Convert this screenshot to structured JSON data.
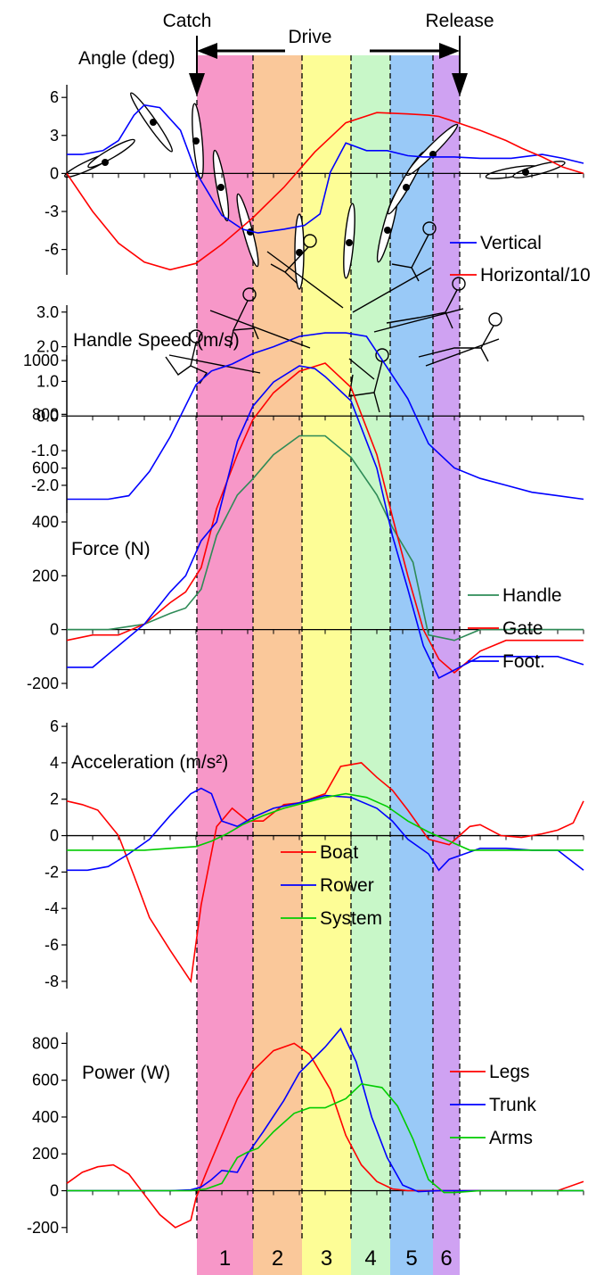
{
  "header": {
    "catch_label": "Catch",
    "drive_label": "Drive",
    "release_label": "Release"
  },
  "phase_colors": [
    "#f797c8",
    "#fac89a",
    "#fdfd96",
    "#c8f7c8",
    "#99c9f7",
    "#cfa2f2"
  ],
  "phase_numbers": [
    "1",
    "2",
    "3",
    "4",
    "5",
    "6"
  ],
  "chart_data": [
    {
      "type": "line",
      "title": "Angle (deg)",
      "ylim": [
        -8,
        7
      ],
      "ticks": [
        6,
        3,
        0,
        -3,
        -6
      ],
      "tick_labels": [
        "6",
        "3",
        "0",
        "-3",
        "-6"
      ],
      "legend": [
        "Vertical",
        "Horizontal/10"
      ],
      "series": [
        {
          "name": "Vertical",
          "color": "#0000ff",
          "x": [
            0,
            3,
            7,
            10,
            13,
            15,
            18,
            22,
            25,
            30,
            34,
            37,
            42,
            46,
            49,
            51,
            54,
            58,
            62,
            66,
            69,
            75,
            80,
            86,
            92,
            96,
            100
          ],
          "values": [
            1.5,
            1.5,
            1.8,
            2.6,
            4.6,
            5.4,
            5.2,
            3.4,
            0.1,
            -3.3,
            -4.4,
            -4.7,
            -4.4,
            -4.1,
            -3.2,
            0.1,
            2.4,
            1.8,
            1.8,
            1.4,
            1.3,
            1.3,
            1.2,
            1.2,
            1.5,
            1.2,
            0.8
          ]
        },
        {
          "name": "Horizontal/10",
          "color": "#ff0000",
          "x": [
            0,
            5,
            10,
            15,
            20,
            25,
            30,
            36,
            42,
            48,
            54,
            60,
            66,
            70,
            72,
            75,
            80,
            85,
            88,
            92,
            96,
            100
          ],
          "values": [
            0,
            -3,
            -5.5,
            -7,
            -7.6,
            -7.1,
            -5.6,
            -3.5,
            -1.1,
            1.7,
            4,
            4.8,
            4.7,
            4.6,
            4.5,
            4.1,
            3.4,
            2.6,
            2,
            1.3,
            0.5,
            0
          ]
        }
      ]
    },
    {
      "type": "line",
      "title": "Handle Speed (m/s)",
      "ylim": [
        -2.8,
        3.2
      ],
      "ticks": [
        3,
        2,
        1,
        0,
        -1,
        -2
      ],
      "tick_labels": [
        "3.0",
        "2.0",
        "1.0",
        "0.0",
        "-1.0",
        "-2.0"
      ],
      "series": [
        {
          "name": "",
          "color": "#0000ff",
          "x": [
            0,
            4,
            8,
            12,
            16,
            20,
            22,
            25,
            28,
            32,
            36,
            40,
            45,
            50,
            54,
            58,
            62,
            66,
            70,
            75,
            80,
            85,
            90,
            95,
            100
          ],
          "values": [
            -2.4,
            -2.4,
            -2.4,
            -2.3,
            -1.6,
            -0.6,
            0.0,
            0.9,
            1.3,
            1.5,
            1.8,
            2.0,
            2.3,
            2.4,
            2.4,
            2.3,
            1.4,
            0.5,
            -0.8,
            -1.5,
            -1.8,
            -2.0,
            -2.2,
            -2.3,
            -2.4
          ]
        }
      ]
    },
    {
      "type": "line",
      "title": "Force (N)",
      "ylim": [
        -220,
        1020
      ],
      "ticks": [
        1000,
        800,
        600,
        400,
        200,
        0,
        -200
      ],
      "tick_labels": [
        "1000",
        "800",
        "600",
        "400",
        "200",
        "0",
        "-200"
      ],
      "legend": [
        "Handle",
        "Gate",
        "Foot."
      ],
      "series": [
        {
          "name": "Handle",
          "color": "#2e8b57",
          "x": [
            0,
            8,
            15,
            20,
            23,
            26,
            29,
            33,
            36,
            40,
            45,
            50,
            55,
            60,
            63,
            67,
            70,
            75,
            80,
            85,
            90,
            95,
            100
          ],
          "values": [
            0,
            0,
            20,
            60,
            80,
            150,
            350,
            500,
            560,
            650,
            720,
            720,
            640,
            500,
            380,
            250,
            -20,
            -40,
            0,
            0,
            0,
            0,
            0
          ]
        },
        {
          "name": "Gate",
          "color": "#ff0000",
          "x": [
            0,
            5,
            10,
            15,
            20,
            23,
            26,
            29,
            33,
            36,
            40,
            45,
            50,
            55,
            60,
            63,
            66,
            69,
            72,
            75,
            80,
            85,
            90,
            95,
            100
          ],
          "values": [
            -40,
            -20,
            -20,
            20,
            100,
            140,
            230,
            450,
            650,
            780,
            880,
            960,
            990,
            900,
            650,
            420,
            200,
            0,
            -110,
            -160,
            -80,
            -40,
            -40,
            -40,
            -40
          ]
        },
        {
          "name": "Foot.",
          "color": "#0000ff",
          "x": [
            0,
            5,
            10,
            15,
            20,
            23,
            26,
            29,
            33,
            36,
            40,
            45,
            48,
            50,
            55,
            60,
            63,
            66,
            69,
            72,
            75,
            80,
            85,
            90,
            95,
            100
          ],
          "values": [
            -140,
            -140,
            -60,
            20,
            140,
            200,
            330,
            400,
            700,
            830,
            920,
            980,
            970,
            940,
            850,
            600,
            350,
            150,
            -60,
            -180,
            -150,
            -100,
            -100,
            -100,
            -100,
            -130
          ]
        }
      ]
    },
    {
      "type": "line",
      "title": "Acceleration (m/s²)",
      "ylim": [
        -8.4,
        6.2
      ],
      "ticks": [
        6,
        4,
        2,
        0,
        -2,
        -4,
        -6,
        -8
      ],
      "tick_labels": [
        "6",
        "4",
        "2",
        "0",
        "-2",
        "-4",
        "-6",
        "-8"
      ],
      "legend": [
        "Boat",
        "Rower",
        "System"
      ],
      "series": [
        {
          "name": "Boat",
          "color": "#ff0000",
          "x": [
            0,
            3,
            6,
            10,
            13,
            16,
            20,
            24,
            26,
            29,
            32,
            35,
            38,
            42,
            45,
            50,
            53,
            57,
            60,
            63,
            66,
            70,
            74,
            78,
            80,
            84,
            88,
            92,
            95,
            98,
            100
          ],
          "values": [
            1.9,
            1.7,
            1.4,
            0,
            -2.2,
            -4.5,
            -6.3,
            -8,
            -3.8,
            0.5,
            1.5,
            0.8,
            0.8,
            1.7,
            1.8,
            2.3,
            3.8,
            4.0,
            3.2,
            2.5,
            1.4,
            -0.2,
            -0.5,
            0.5,
            0.6,
            0,
            -0.1,
            0.1,
            0.3,
            0.7,
            1.9
          ]
        },
        {
          "name": "Rower",
          "color": "#0000ff",
          "x": [
            0,
            4,
            8,
            12,
            16,
            20,
            24,
            26,
            28,
            30,
            33,
            36,
            40,
            45,
            50,
            55,
            60,
            63,
            66,
            70,
            72,
            74,
            76,
            80,
            85,
            90,
            95,
            100
          ],
          "values": [
            -1.9,
            -1.9,
            -1.7,
            -1.0,
            -0.2,
            1.1,
            2.3,
            2.6,
            2.3,
            0.8,
            0.5,
            1.0,
            1.5,
            1.8,
            2.2,
            2.1,
            1.5,
            0.8,
            -0.2,
            -1.0,
            -1.9,
            -1.3,
            -1.1,
            -0.7,
            -0.7,
            -0.8,
            -0.8,
            -1.9
          ]
        },
        {
          "name": "System",
          "color": "#00cc00",
          "x": [
            0,
            5,
            10,
            15,
            20,
            25,
            28,
            31,
            34,
            38,
            42,
            46,
            50,
            54,
            58,
            62,
            66,
            70,
            74,
            78,
            82,
            86,
            90,
            95,
            100
          ],
          "values": [
            -0.8,
            -0.8,
            -0.8,
            -0.8,
            -0.7,
            -0.6,
            -0.3,
            0.1,
            0.6,
            1.1,
            1.5,
            1.8,
            2.1,
            2.3,
            2.1,
            1.6,
            0.8,
            0.2,
            -0.3,
            -0.8,
            -0.8,
            -0.8,
            -0.8,
            -0.8,
            -0.8
          ]
        }
      ]
    },
    {
      "type": "line",
      "title": "Power (W)",
      "ylim": [
        -230,
        860
      ],
      "ticks": [
        800,
        600,
        400,
        200,
        0,
        -200
      ],
      "tick_labels": [
        "800",
        "600",
        "400",
        "200",
        "0",
        "-200"
      ],
      "legend": [
        "Legs",
        "Trunk",
        "Arms"
      ],
      "series": [
        {
          "name": "Legs",
          "color": "#ff0000",
          "x": [
            0,
            3,
            6,
            9,
            12,
            15,
            18,
            21,
            24,
            25,
            27,
            30,
            33,
            36,
            40,
            44,
            47,
            51,
            54,
            57,
            60,
            63,
            66,
            70,
            75,
            80,
            85,
            90,
            95,
            100
          ],
          "values": [
            40,
            100,
            130,
            140,
            90,
            -20,
            -130,
            -200,
            -160,
            -40,
            100,
            300,
            500,
            650,
            760,
            800,
            740,
            550,
            300,
            140,
            50,
            10,
            0,
            0,
            0,
            0,
            0,
            0,
            0,
            50
          ]
        },
        {
          "name": "Trunk",
          "color": "#0000ff",
          "x": [
            0,
            5,
            10,
            15,
            20,
            24,
            26,
            28,
            30,
            33,
            35,
            38,
            42,
            45,
            50,
            53,
            56,
            59,
            62,
            65,
            68,
            72,
            76,
            80,
            85,
            90,
            95,
            100
          ],
          "values": [
            0,
            0,
            0,
            0,
            0,
            5,
            20,
            60,
            110,
            100,
            200,
            320,
            490,
            640,
            780,
            880,
            700,
            400,
            180,
            30,
            -5,
            0,
            0,
            0,
            0,
            0,
            0,
            0
          ]
        },
        {
          "name": "Arms",
          "color": "#00cc00",
          "x": [
            0,
            5,
            10,
            15,
            20,
            24,
            27,
            30,
            33,
            35,
            37,
            40,
            44,
            47,
            50,
            54,
            57,
            61,
            64,
            67,
            70,
            73,
            75,
            80,
            85,
            90,
            95,
            100
          ],
          "values": [
            0,
            0,
            0,
            0,
            0,
            0,
            10,
            40,
            180,
            210,
            230,
            320,
            420,
            450,
            450,
            500,
            580,
            560,
            460,
            280,
            60,
            -10,
            -10,
            0,
            0,
            0,
            0,
            0
          ]
        }
      ]
    }
  ]
}
